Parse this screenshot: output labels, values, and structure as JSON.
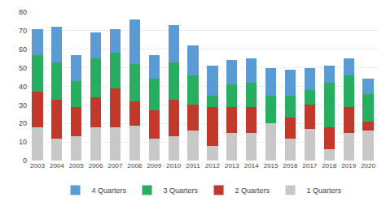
{
  "chart_data": {
    "type": "bar",
    "stacked": true,
    "categories": [
      "2003",
      "2004",
      "2005",
      "2006",
      "2007",
      "2008",
      "2009",
      "2010",
      "2011",
      "2012",
      "2013",
      "2014",
      "2015",
      "2016",
      "2017",
      "2018",
      "2019",
      "2020"
    ],
    "series": [
      {
        "name": "1 Quarters",
        "color": "#c8c8c8",
        "values": [
          18,
          12,
          13,
          18,
          18,
          19,
          12,
          13,
          16,
          8,
          15,
          15,
          20,
          12,
          17,
          6,
          15,
          16
        ]
      },
      {
        "name": "2 Quarters",
        "color": "#c0392b",
        "values": [
          19,
          21,
          16,
          16,
          21,
          13,
          15,
          20,
          14,
          21,
          14,
          14,
          0,
          11,
          13,
          12,
          14,
          5
        ]
      },
      {
        "name": "3 Quarters",
        "color": "#27ae60",
        "values": [
          20,
          20,
          14,
          21,
          19,
          20,
          17,
          20,
          16,
          6,
          12,
          13,
          15,
          12,
          8,
          24,
          17,
          15
        ]
      },
      {
        "name": "4 Quarters",
        "color": "#5b9bd5",
        "values": [
          14,
          19,
          14,
          14,
          13,
          24,
          13,
          20,
          16,
          16,
          13,
          13,
          15,
          14,
          12,
          9,
          9,
          8
        ]
      }
    ],
    "ylim": [
      0,
      80
    ],
    "yticks": [
      0,
      10,
      20,
      30,
      40,
      50,
      60,
      70,
      80
    ],
    "grid": true,
    "legend": "bottom"
  }
}
